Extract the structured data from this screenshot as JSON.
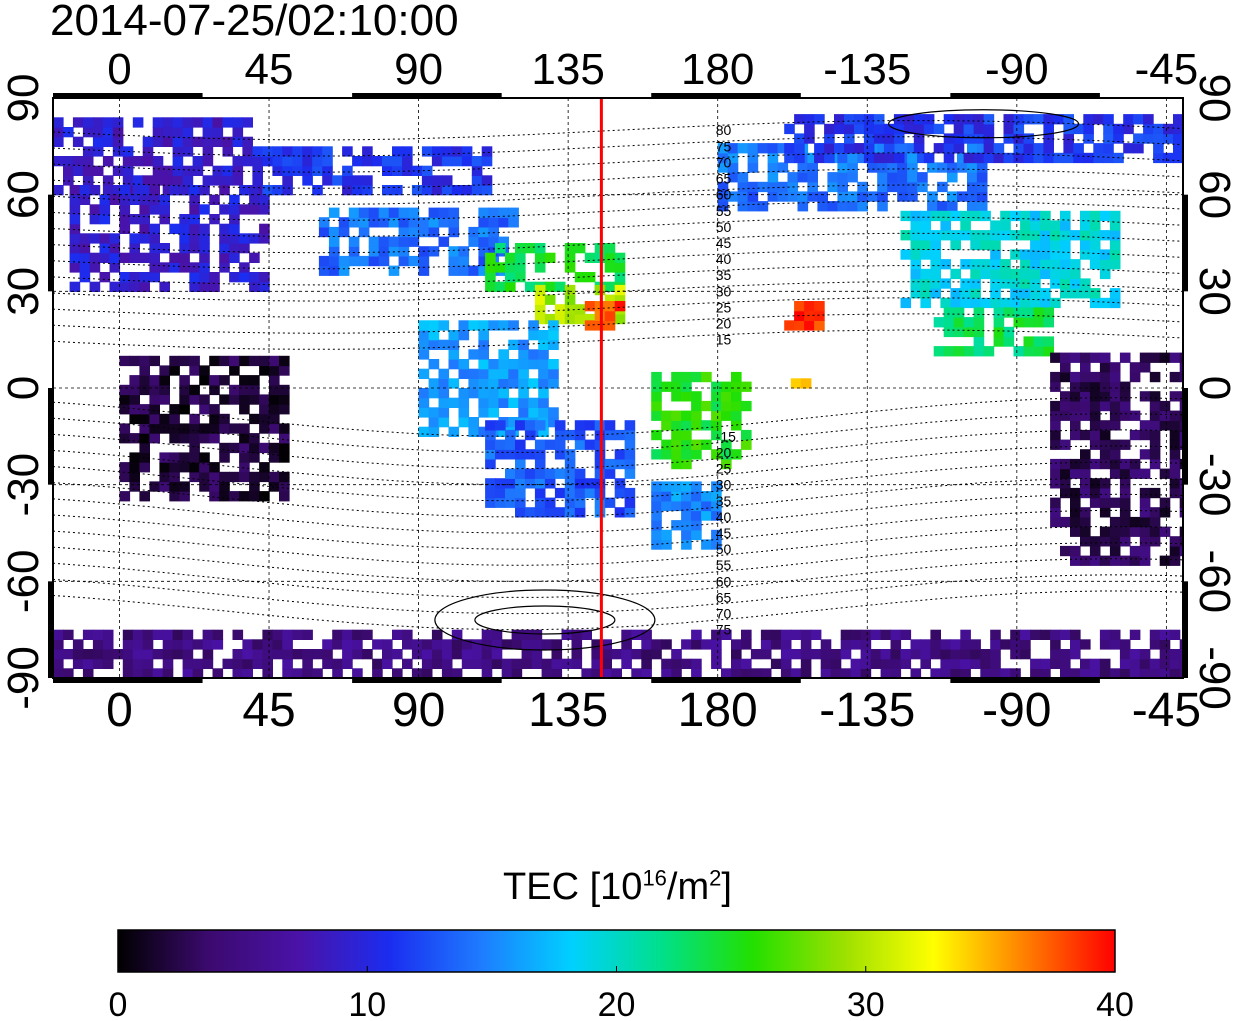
{
  "title": "2014-07-25/02:10:00",
  "chart_data": {
    "type": "heatmap",
    "title": "2014-07-25/02:10:00",
    "map": "world TEC map, equirectangular projection",
    "x_axis": {
      "ticks": [
        "0",
        "45",
        "90",
        "135",
        "180",
        "-135",
        "-90",
        "-45"
      ],
      "range_deg": [
        -20,
        320
      ],
      "unit": "longitude degrees"
    },
    "y_axis": {
      "ticks": [
        "90",
        "60",
        "30",
        "0",
        "-30",
        "-60",
        "-90"
      ],
      "range_deg": [
        -90,
        90
      ],
      "unit": "latitude degrees"
    },
    "grid": true,
    "marker_longitude": 145,
    "contour_labels": [
      "80",
      "75",
      "70",
      "65",
      "60",
      "55",
      "50",
      "45",
      "40",
      "35",
      "30",
      "25",
      "20",
      "15",
      "-15",
      "20",
      "25",
      "30",
      "35",
      "40",
      "45",
      "50",
      "55",
      "60",
      "65",
      "70",
      "75"
    ],
    "colorbar": {
      "label_main": "TEC  [10",
      "label_sup1": "16",
      "label_mid": "/m",
      "label_sup2": "2",
      "label_end": "]",
      "min": 0,
      "max": 40,
      "ticks": [
        "0",
        "10",
        "20",
        "30",
        "40"
      ],
      "colors": [
        "#000000",
        "#3b0a6e",
        "#4a12a8",
        "#1b2df0",
        "#1e7bff",
        "#00d0ff",
        "#00e08a",
        "#22e000",
        "#9be000",
        "#ffff00",
        "#ff8000",
        "#ff0000"
      ]
    },
    "tec_regions": [
      {
        "lon_min": -20,
        "lon_max": 40,
        "lat_min": 60,
        "lat_max": 82,
        "tec": 9
      },
      {
        "lon_min": -15,
        "lon_max": 45,
        "lat_min": 30,
        "lat_max": 62,
        "tec": 9
      },
      {
        "lon_min": 40,
        "lon_max": 110,
        "lat_min": 60,
        "lat_max": 75,
        "tec": 11
      },
      {
        "lon_min": 60,
        "lon_max": 120,
        "lat_min": 35,
        "lat_max": 55,
        "tec": 14
      },
      {
        "lon_min": 110,
        "lon_max": 150,
        "lat_min": 30,
        "lat_max": 45,
        "tec": 24
      },
      {
        "lon_min": 125,
        "lon_max": 150,
        "lat_min": 20,
        "lat_max": 32,
        "tec": 30
      },
      {
        "lon_min": 140,
        "lon_max": 150,
        "lat_min": 18,
        "lat_max": 25,
        "tec": 38
      },
      {
        "lon_min": 90,
        "lon_max": 130,
        "lat_min": -15,
        "lat_max": 20,
        "tec": 16
      },
      {
        "lon_min": 110,
        "lon_max": 155,
        "lat_min": -40,
        "lat_max": -12,
        "tec": 13
      },
      {
        "lon_min": 160,
        "lon_max": 190,
        "lat_min": -25,
        "lat_max": 5,
        "tec": 25
      },
      {
        "lon_min": 160,
        "lon_max": 180,
        "lat_min": -50,
        "lat_max": -30,
        "tec": 15
      },
      {
        "lon_min": 200,
        "lon_max": 210,
        "lat_min": 18,
        "lat_max": 25,
        "tec": 39
      },
      {
        "lon_min": 202,
        "lon_max": 208,
        "lat_min": 0,
        "lat_max": 5,
        "tec": 33
      },
      {
        "lon_min": 180,
        "lon_max": 260,
        "lat_min": 55,
        "lat_max": 75,
        "tec": 14
      },
      {
        "lon_min": 235,
        "lon_max": 300,
        "lat_min": 25,
        "lat_max": 55,
        "tec": 19
      },
      {
        "lon_min": 245,
        "lon_max": 280,
        "lat_min": 10,
        "lat_max": 25,
        "tec": 23
      },
      {
        "lon_min": 200,
        "lon_max": 320,
        "lat_min": 70,
        "lat_max": 85,
        "tec": 11
      },
      {
        "lon_min": 280,
        "lon_max": 320,
        "lat_min": -55,
        "lat_max": 10,
        "tec": 3
      },
      {
        "lon_min": 0,
        "lon_max": 50,
        "lat_min": -35,
        "lat_max": 10,
        "tec": 2
      },
      {
        "lon_min": -20,
        "lon_max": 320,
        "lat_min": -90,
        "lat_max": -75,
        "tec": 5
      }
    ]
  }
}
